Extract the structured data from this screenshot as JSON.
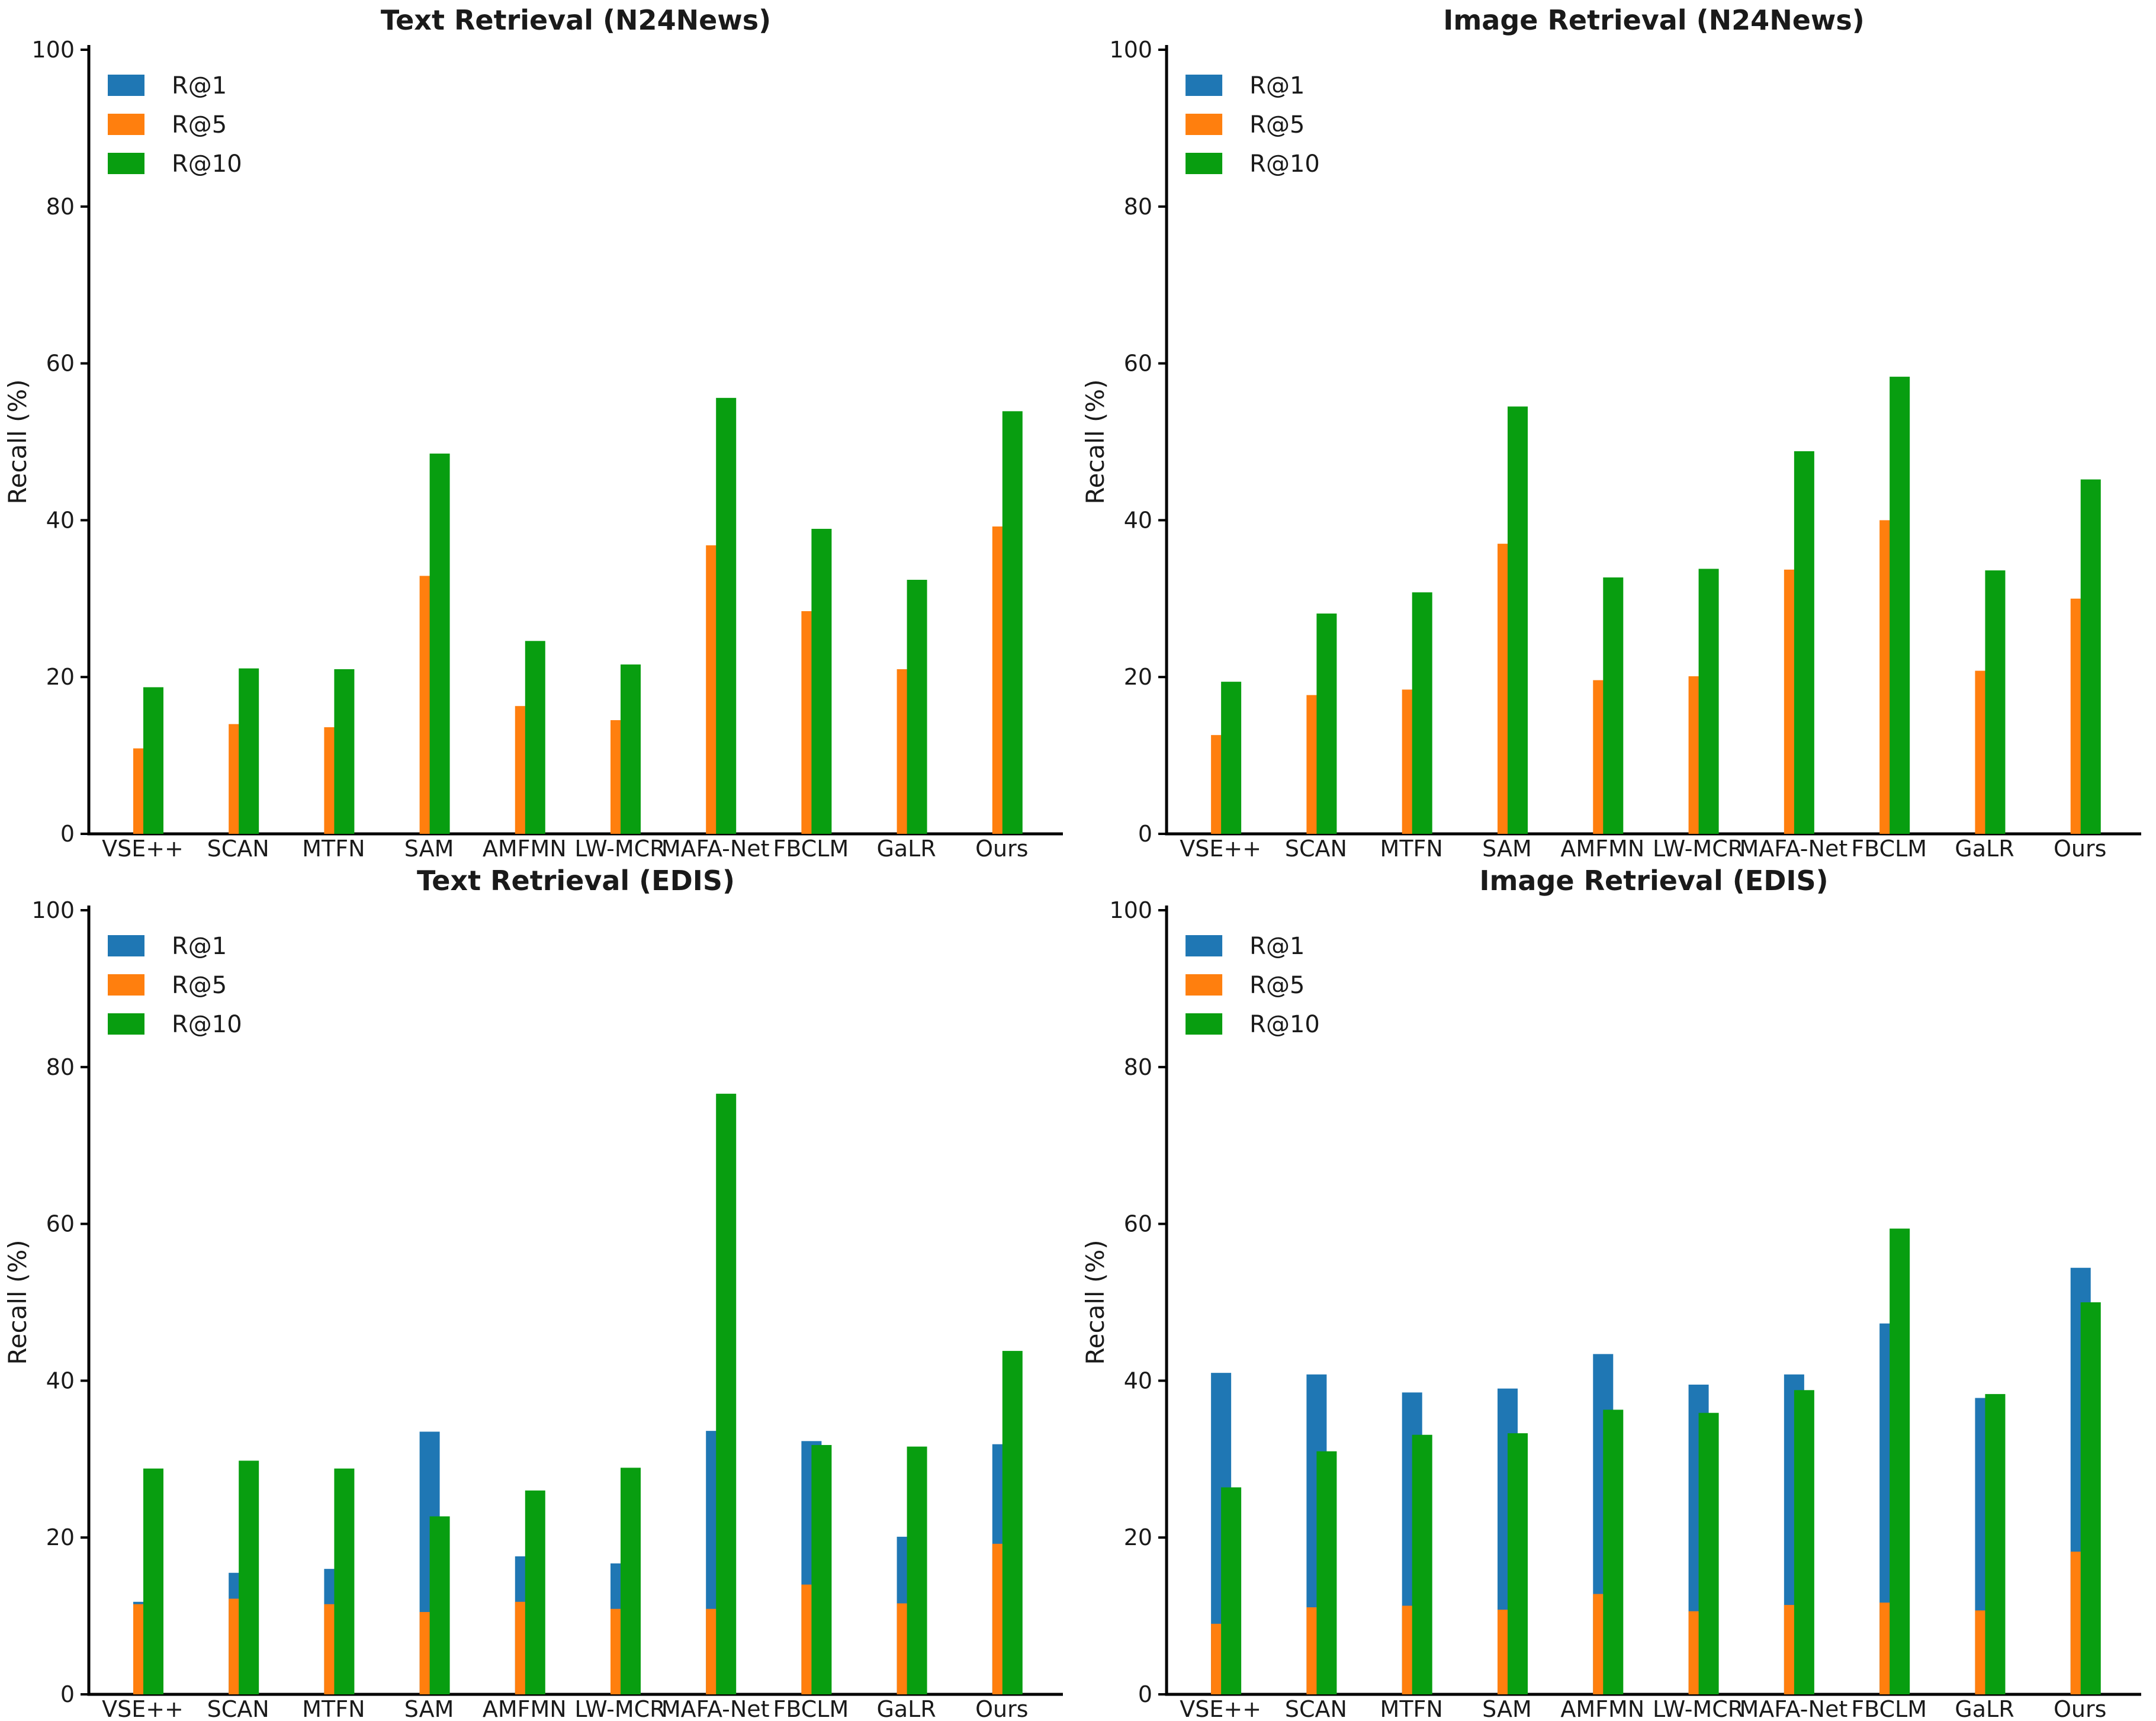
{
  "page": {
    "background": "#ffffff"
  },
  "colors": {
    "r1_blue": "#1f77b4",
    "r5_orange": "#ff7f0e",
    "r10_green": "#089e10",
    "axis": "#000000",
    "text": "#1a1a1a"
  },
  "legend": {
    "position": "upper-left",
    "entries": [
      {
        "label": "R@1",
        "color": "#1f77b4"
      },
      {
        "label": "R@5",
        "color": "#ff7f0e"
      },
      {
        "label": "R@10",
        "color": "#089e10"
      }
    ]
  },
  "categories": [
    "VSE++",
    "SCAN",
    "MTFN",
    "SAM",
    "AMFMN",
    "LW-MCR",
    "MAFA-Net",
    "FBCLM",
    "GaLR",
    "Ours"
  ],
  "chart_data": [
    {
      "type": "bar",
      "position": "top-left",
      "title": "Text Retrieval (N24News)",
      "xlabel": "",
      "ylabel": "Recall (%)",
      "ylim": [
        0,
        100
      ],
      "yticks": [
        0,
        20,
        40,
        60,
        80,
        100
      ],
      "grid": false,
      "legend_position": "upper-left",
      "categories": [
        "VSE++",
        "SCAN",
        "MTFN",
        "SAM",
        "AMFMN",
        "LW-MCR",
        "MAFA-Net",
        "FBCLM",
        "GaLR",
        "Ours"
      ],
      "series": [
        {
          "name": "R@1",
          "color": "#1f77b4",
          "values": [
            null,
            null,
            null,
            null,
            null,
            null,
            null,
            null,
            null,
            null
          ]
        },
        {
          "name": "R@5",
          "color": "#ff7f0e",
          "values": [
            10.9,
            14.0,
            13.6,
            32.9,
            16.3,
            14.5,
            36.8,
            28.4,
            21.0,
            39.2
          ]
        },
        {
          "name": "R@10",
          "color": "#089e10",
          "values": [
            18.7,
            21.1,
            21.0,
            48.5,
            24.6,
            21.6,
            55.6,
            38.9,
            32.4,
            53.9
          ]
        }
      ]
    },
    {
      "type": "bar",
      "position": "top-right",
      "title": "Image Retrieval (N24News)",
      "xlabel": "",
      "ylabel": "Recall (%)",
      "ylim": [
        0,
        100
      ],
      "yticks": [
        0,
        20,
        40,
        60,
        80,
        100
      ],
      "grid": false,
      "legend_position": "upper-left",
      "categories": [
        "VSE++",
        "SCAN",
        "MTFN",
        "SAM",
        "AMFMN",
        "LW-MCR",
        "MAFA-Net",
        "FBCLM",
        "GaLR",
        "Ours"
      ],
      "series": [
        {
          "name": "R@1",
          "color": "#1f77b4",
          "values": [
            null,
            null,
            null,
            null,
            null,
            null,
            null,
            null,
            null,
            null
          ]
        },
        {
          "name": "R@5",
          "color": "#ff7f0e",
          "values": [
            12.6,
            17.7,
            18.4,
            37.0,
            19.6,
            20.1,
            33.7,
            40.0,
            20.8,
            30.0
          ]
        },
        {
          "name": "R@10",
          "color": "#089e10",
          "values": [
            19.4,
            28.1,
            30.8,
            54.5,
            32.7,
            33.8,
            48.8,
            58.3,
            33.6,
            45.2
          ]
        }
      ]
    },
    {
      "type": "bar",
      "position": "bottom-left",
      "title": "Text Retrieval (EDIS)",
      "xlabel": "",
      "ylabel": "Recall (%)",
      "ylim": [
        0,
        100
      ],
      "yticks": [
        0,
        20,
        40,
        60,
        80,
        100
      ],
      "grid": false,
      "legend_position": "upper-left",
      "categories": [
        "VSE++",
        "SCAN",
        "MTFN",
        "SAM",
        "AMFMN",
        "LW-MCR",
        "MAFA-Net",
        "FBCLM",
        "GaLR",
        "Ours"
      ],
      "series": [
        {
          "name": "R@1",
          "color": "#1f77b4",
          "values": [
            11.8,
            15.5,
            16.0,
            33.5,
            17.6,
            16.7,
            33.6,
            32.3,
            20.1,
            31.9
          ]
        },
        {
          "name": "R@5",
          "color": "#ff7f0e",
          "values": [
            11.5,
            12.2,
            11.5,
            10.5,
            11.8,
            10.9,
            10.9,
            14.0,
            11.6,
            19.2
          ]
        },
        {
          "name": "R@10",
          "color": "#089e10",
          "values": [
            28.8,
            29.8,
            28.8,
            22.7,
            26.0,
            28.9,
            76.6,
            31.8,
            31.6,
            43.8
          ]
        }
      ]
    },
    {
      "type": "bar",
      "position": "bottom-right",
      "title": "Image Retrieval (EDIS)",
      "xlabel": "",
      "ylabel": "Recall (%)",
      "ylim": [
        0,
        100
      ],
      "yticks": [
        0,
        20,
        40,
        60,
        80,
        100
      ],
      "grid": false,
      "legend_position": "upper-left",
      "categories": [
        "VSE++",
        "SCAN",
        "MTFN",
        "SAM",
        "AMFMN",
        "LW-MCR",
        "MAFA-Net",
        "FBCLM",
        "GaLR",
        "Ours"
      ],
      "series": [
        {
          "name": "R@1",
          "color": "#1f77b4",
          "values": [
            41.0,
            40.8,
            38.5,
            39.0,
            43.4,
            39.5,
            40.8,
            47.3,
            37.8,
            54.4
          ]
        },
        {
          "name": "R@5",
          "color": "#ff7f0e",
          "values": [
            9.0,
            11.1,
            11.3,
            10.8,
            12.8,
            10.6,
            11.4,
            11.7,
            10.7,
            18.2
          ]
        },
        {
          "name": "R@10",
          "color": "#089e10",
          "values": [
            26.4,
            31.0,
            33.1,
            33.3,
            36.3,
            35.9,
            38.8,
            59.4,
            38.3,
            50.0
          ]
        }
      ]
    }
  ]
}
